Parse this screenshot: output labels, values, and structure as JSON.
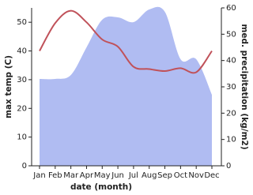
{
  "chart_data": {
    "type": "line",
    "x_label": "date (month)",
    "y_label": "max temp (C)",
    "y2_label": "med. precipitation (kg/m2)",
    "categories": [
      "Jan",
      "Feb",
      "Mar",
      "Apr",
      "May",
      "Jun",
      "Jul",
      "Aug",
      "Sep",
      "Oct",
      "Nov",
      "Dec"
    ],
    "series": [
      {
        "name": "med. precipitation (kg/m2)",
        "type": "area",
        "axis": "y2",
        "color": "#b0bcf2",
        "values": [
          33,
          33,
          34.5,
          45,
          55.5,
          56.4,
          54.6,
          59.4,
          58.5,
          40.5,
          40.5,
          27
        ]
      },
      {
        "name": "max temp (C)",
        "type": "line",
        "color": "#c0525a",
        "values": [
          40,
          49.7,
          54,
          50,
          44,
          41.5,
          34.5,
          33.7,
          33,
          34,
          32.6,
          40
        ]
      }
    ],
    "ylim": [
      0,
      55
    ],
    "yticks": [
      0,
      10,
      20,
      30,
      40,
      50
    ],
    "y2lim": [
      0,
      60
    ],
    "y2ticks": [
      0,
      10,
      20,
      30,
      40,
      50,
      60
    ]
  }
}
